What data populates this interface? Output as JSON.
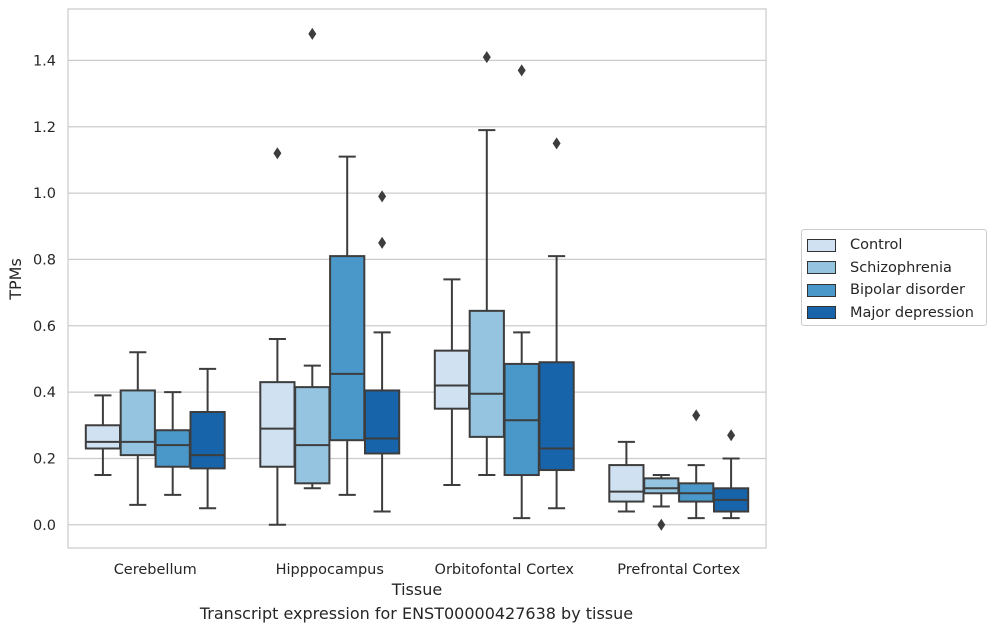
{
  "chart_data": {
    "type": "box",
    "title": "",
    "xlabel": "Tissue",
    "ylabel": "TPMs",
    "caption": "Transcript expression for ENST00000427638 by tissue",
    "ylim": [
      -0.07,
      1.555
    ],
    "yticks": [
      "0.0",
      "0.2",
      "0.4",
      "0.6",
      "0.8",
      "1.0",
      "1.2",
      "1.4"
    ],
    "grid": "horizontal",
    "legend_placement": "right",
    "categories": [
      "Cerebellum",
      "Hipppocampus",
      "Orbitofontal Cortex",
      "Prefrontal Cortex"
    ],
    "series": [
      {
        "name": "Control",
        "color": "#d0e1f2",
        "boxes": [
          {
            "whislo": 0.15,
            "q1": 0.23,
            "med": 0.25,
            "q3": 0.3,
            "whishi": 0.39,
            "fliers": []
          },
          {
            "whislo": 0.0,
            "q1": 0.175,
            "med": 0.29,
            "q3": 0.43,
            "whishi": 0.56,
            "fliers": [
              1.12
            ]
          },
          {
            "whislo": 0.12,
            "q1": 0.35,
            "med": 0.42,
            "q3": 0.525,
            "whishi": 0.74,
            "fliers": []
          },
          {
            "whislo": 0.04,
            "q1": 0.07,
            "med": 0.1,
            "q3": 0.18,
            "whishi": 0.25,
            "fliers": []
          }
        ]
      },
      {
        "name": "Schizophrenia",
        "color": "#94c4df",
        "boxes": [
          {
            "whislo": 0.06,
            "q1": 0.21,
            "med": 0.25,
            "q3": 0.405,
            "whishi": 0.52,
            "fliers": []
          },
          {
            "whislo": 0.11,
            "q1": 0.125,
            "med": 0.24,
            "q3": 0.415,
            "whishi": 0.48,
            "fliers": [
              1.48
            ]
          },
          {
            "whislo": 0.15,
            "q1": 0.265,
            "med": 0.395,
            "q3": 0.645,
            "whishi": 1.19,
            "fliers": [
              1.41
            ]
          },
          {
            "whislo": 0.055,
            "q1": 0.095,
            "med": 0.11,
            "q3": 0.14,
            "whishi": 0.15,
            "fliers": [
              0.0
            ]
          }
        ]
      },
      {
        "name": "Bipolar disorder",
        "color": "#4a98c9",
        "boxes": [
          {
            "whislo": 0.09,
            "q1": 0.175,
            "med": 0.24,
            "q3": 0.285,
            "whishi": 0.4,
            "fliers": []
          },
          {
            "whislo": 0.09,
            "q1": 0.255,
            "med": 0.455,
            "q3": 0.81,
            "whishi": 1.11,
            "fliers": []
          },
          {
            "whislo": 0.02,
            "q1": 0.15,
            "med": 0.315,
            "q3": 0.485,
            "whishi": 0.58,
            "fliers": [
              1.37
            ]
          },
          {
            "whislo": 0.02,
            "q1": 0.07,
            "med": 0.095,
            "q3": 0.125,
            "whishi": 0.18,
            "fliers": [
              0.33
            ]
          }
        ]
      },
      {
        "name": "Major depression",
        "color": "#1764ab",
        "boxes": [
          {
            "whislo": 0.05,
            "q1": 0.17,
            "med": 0.21,
            "q3": 0.34,
            "whishi": 0.47,
            "fliers": []
          },
          {
            "whislo": 0.04,
            "q1": 0.215,
            "med": 0.26,
            "q3": 0.405,
            "whishi": 0.58,
            "fliers": [
              0.85,
              0.99
            ]
          },
          {
            "whislo": 0.05,
            "q1": 0.165,
            "med": 0.23,
            "q3": 0.49,
            "whishi": 0.81,
            "fliers": [
              1.15
            ]
          },
          {
            "whislo": 0.02,
            "q1": 0.04,
            "med": 0.075,
            "q3": 0.11,
            "whishi": 0.2,
            "fliers": [
              0.27
            ]
          }
        ]
      }
    ]
  }
}
